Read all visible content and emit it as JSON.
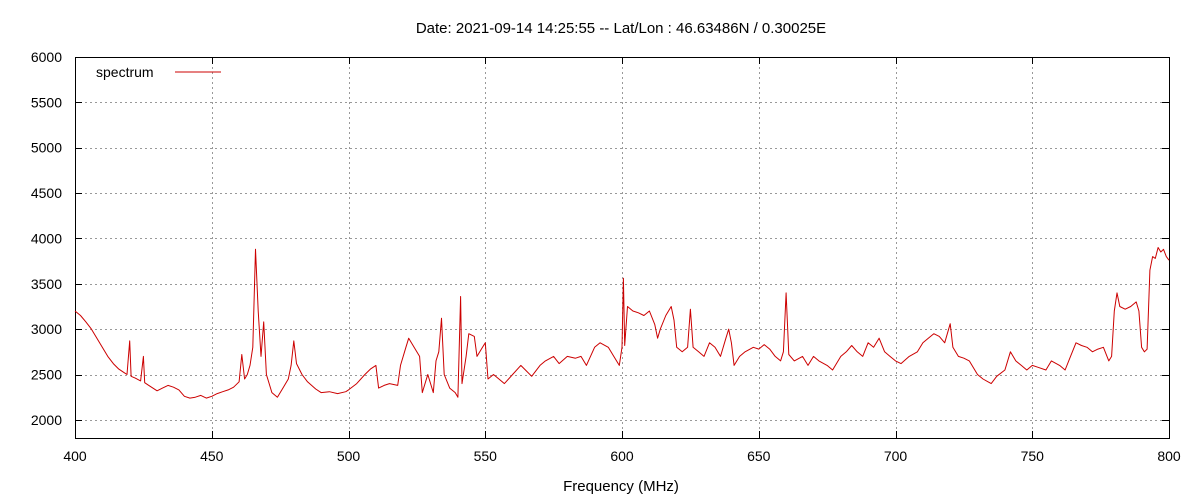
{
  "chart_data": {
    "type": "line",
    "title": "Date: 2021-09-14 14:25:55  --  Lat/Lon : 46.63486N / 0.30025E",
    "xlabel": "Frequency (MHz)",
    "ylabel": "",
    "xlim": [
      400,
      800
    ],
    "ylim": [
      1800,
      6000
    ],
    "xticks": [
      400,
      450,
      500,
      550,
      600,
      650,
      700,
      750,
      800
    ],
    "yticks": [
      2000,
      2500,
      3000,
      3500,
      4000,
      4500,
      5000,
      5500,
      6000
    ],
    "grid": true,
    "legend_position": "top-left",
    "series": [
      {
        "name": "spectrum",
        "color": "#cc0000",
        "points": [
          [
            400,
            3200
          ],
          [
            402,
            3150
          ],
          [
            404,
            3080
          ],
          [
            406,
            3000
          ],
          [
            408,
            2900
          ],
          [
            410,
            2800
          ],
          [
            412,
            2700
          ],
          [
            414,
            2620
          ],
          [
            416,
            2560
          ],
          [
            418,
            2520
          ],
          [
            419,
            2500
          ],
          [
            420,
            2870
          ],
          [
            420.5,
            2480
          ],
          [
            422,
            2460
          ],
          [
            424,
            2430
          ],
          [
            425,
            2700
          ],
          [
            425.5,
            2410
          ],
          [
            427,
            2380
          ],
          [
            430,
            2320
          ],
          [
            432,
            2350
          ],
          [
            434,
            2380
          ],
          [
            436,
            2360
          ],
          [
            438,
            2330
          ],
          [
            440,
            2260
          ],
          [
            442,
            2240
          ],
          [
            444,
            2250
          ],
          [
            446,
            2270
          ],
          [
            448,
            2240
          ],
          [
            450,
            2260
          ],
          [
            452,
            2290
          ],
          [
            454,
            2310
          ],
          [
            456,
            2330
          ],
          [
            458,
            2360
          ],
          [
            460,
            2420
          ],
          [
            461,
            2720
          ],
          [
            462,
            2450
          ],
          [
            463,
            2500
          ],
          [
            464,
            2600
          ],
          [
            465,
            2800
          ],
          [
            466,
            3880
          ],
          [
            467,
            3200
          ],
          [
            468,
            2700
          ],
          [
            469,
            3080
          ],
          [
            470,
            2500
          ],
          [
            472,
            2300
          ],
          [
            474,
            2250
          ],
          [
            476,
            2350
          ],
          [
            478,
            2450
          ],
          [
            479,
            2600
          ],
          [
            480,
            2870
          ],
          [
            481,
            2620
          ],
          [
            483,
            2500
          ],
          [
            485,
            2420
          ],
          [
            488,
            2340
          ],
          [
            490,
            2300
          ],
          [
            493,
            2310
          ],
          [
            496,
            2290
          ],
          [
            499,
            2310
          ],
          [
            500,
            2330
          ],
          [
            503,
            2400
          ],
          [
            506,
            2500
          ],
          [
            508,
            2560
          ],
          [
            510,
            2600
          ],
          [
            511,
            2350
          ],
          [
            513,
            2380
          ],
          [
            515,
            2400
          ],
          [
            518,
            2380
          ],
          [
            519,
            2600
          ],
          [
            521,
            2800
          ],
          [
            522,
            2900
          ],
          [
            524,
            2800
          ],
          [
            526,
            2700
          ],
          [
            527,
            2300
          ],
          [
            529,
            2500
          ],
          [
            531,
            2300
          ],
          [
            532,
            2650
          ],
          [
            533,
            2750
          ],
          [
            534,
            3120
          ],
          [
            535,
            2500
          ],
          [
            537,
            2350
          ],
          [
            539,
            2300
          ],
          [
            540,
            2250
          ],
          [
            541,
            3360
          ],
          [
            541.5,
            2400
          ],
          [
            543,
            2700
          ],
          [
            544,
            2950
          ],
          [
            546,
            2920
          ],
          [
            547,
            2700
          ],
          [
            549,
            2800
          ],
          [
            550,
            2850
          ],
          [
            551,
            2450
          ],
          [
            553,
            2500
          ],
          [
            555,
            2450
          ],
          [
            557,
            2400
          ],
          [
            560,
            2500
          ],
          [
            563,
            2600
          ],
          [
            565,
            2540
          ],
          [
            567,
            2480
          ],
          [
            570,
            2600
          ],
          [
            572,
            2650
          ],
          [
            575,
            2700
          ],
          [
            577,
            2620
          ],
          [
            580,
            2700
          ],
          [
            583,
            2680
          ],
          [
            585,
            2700
          ],
          [
            587,
            2600
          ],
          [
            590,
            2800
          ],
          [
            592,
            2850
          ],
          [
            595,
            2800
          ],
          [
            597,
            2700
          ],
          [
            599,
            2600
          ],
          [
            600,
            2800
          ],
          [
            600.5,
            3560
          ],
          [
            601,
            2820
          ],
          [
            602,
            3250
          ],
          [
            604,
            3200
          ],
          [
            606,
            3180
          ],
          [
            608,
            3150
          ],
          [
            610,
            3200
          ],
          [
            612,
            3050
          ],
          [
            613,
            2900
          ],
          [
            614,
            3000
          ],
          [
            616,
            3150
          ],
          [
            618,
            3250
          ],
          [
            619,
            3100
          ],
          [
            620,
            2800
          ],
          [
            622,
            2750
          ],
          [
            624,
            2800
          ],
          [
            625,
            3220
          ],
          [
            626,
            2800
          ],
          [
            628,
            2750
          ],
          [
            630,
            2700
          ],
          [
            632,
            2850
          ],
          [
            634,
            2800
          ],
          [
            636,
            2700
          ],
          [
            638,
            2900
          ],
          [
            639,
            3000
          ],
          [
            640,
            2850
          ],
          [
            641,
            2600
          ],
          [
            643,
            2700
          ],
          [
            645,
            2750
          ],
          [
            648,
            2800
          ],
          [
            650,
            2780
          ],
          [
            652,
            2830
          ],
          [
            654,
            2780
          ],
          [
            656,
            2700
          ],
          [
            658,
            2650
          ],
          [
            659,
            2750
          ],
          [
            660,
            3400
          ],
          [
            661,
            2720
          ],
          [
            663,
            2650
          ],
          [
            666,
            2700
          ],
          [
            668,
            2600
          ],
          [
            670,
            2700
          ],
          [
            672,
            2650
          ],
          [
            675,
            2600
          ],
          [
            677,
            2550
          ],
          [
            680,
            2700
          ],
          [
            682,
            2750
          ],
          [
            684,
            2820
          ],
          [
            686,
            2750
          ],
          [
            688,
            2700
          ],
          [
            690,
            2850
          ],
          [
            692,
            2800
          ],
          [
            694,
            2900
          ],
          [
            696,
            2750
          ],
          [
            698,
            2700
          ],
          [
            700,
            2650
          ],
          [
            702,
            2620
          ],
          [
            705,
            2700
          ],
          [
            708,
            2750
          ],
          [
            710,
            2850
          ],
          [
            712,
            2900
          ],
          [
            714,
            2950
          ],
          [
            716,
            2920
          ],
          [
            718,
            2850
          ],
          [
            720,
            3060
          ],
          [
            721,
            2800
          ],
          [
            723,
            2700
          ],
          [
            725,
            2680
          ],
          [
            727,
            2650
          ],
          [
            730,
            2500
          ],
          [
            732,
            2450
          ],
          [
            735,
            2400
          ],
          [
            737,
            2480
          ],
          [
            740,
            2550
          ],
          [
            742,
            2750
          ],
          [
            744,
            2650
          ],
          [
            746,
            2600
          ],
          [
            748,
            2550
          ],
          [
            750,
            2600
          ],
          [
            752,
            2580
          ],
          [
            755,
            2550
          ],
          [
            757,
            2650
          ],
          [
            760,
            2600
          ],
          [
            762,
            2550
          ],
          [
            764,
            2700
          ],
          [
            766,
            2850
          ],
          [
            768,
            2820
          ],
          [
            770,
            2800
          ],
          [
            772,
            2750
          ],
          [
            774,
            2780
          ],
          [
            776,
            2800
          ],
          [
            778,
            2650
          ],
          [
            779,
            2700
          ],
          [
            780,
            3200
          ],
          [
            781,
            3400
          ],
          [
            782,
            3250
          ],
          [
            784,
            3220
          ],
          [
            786,
            3250
          ],
          [
            788,
            3300
          ],
          [
            789,
            3200
          ],
          [
            790,
            2800
          ],
          [
            791,
            2750
          ],
          [
            792,
            2780
          ],
          [
            793,
            3650
          ],
          [
            794,
            3800
          ],
          [
            795,
            3780
          ],
          [
            796,
            3900
          ],
          [
            797,
            3850
          ],
          [
            798,
            3880
          ],
          [
            799,
            3800
          ],
          [
            800,
            3760
          ]
        ]
      }
    ]
  }
}
